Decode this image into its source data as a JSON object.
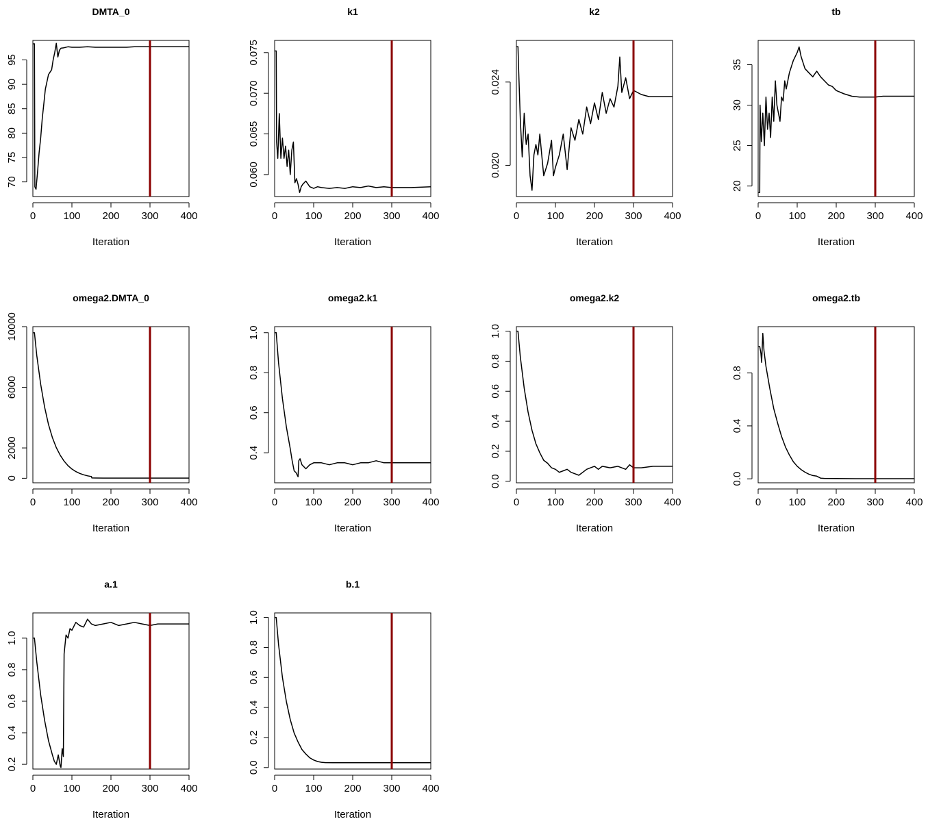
{
  "chart_data": [
    {
      "type": "line",
      "title": "DMTA_0",
      "xlabel": "Iteration",
      "xlim": [
        0,
        400
      ],
      "ylim": [
        67,
        99
      ],
      "xticks": [
        0,
        100,
        200,
        300,
        400
      ],
      "yticks": [
        70,
        75,
        80,
        85,
        90,
        95
      ],
      "vline": {
        "x": 300,
        "color": "#8b0000"
      },
      "series": [
        {
          "x": [
            1,
            4,
            5,
            8,
            12,
            16,
            20,
            24,
            28,
            32,
            36,
            40,
            44,
            48,
            52,
            56,
            60,
            64,
            68,
            72,
            80,
            90,
            100,
            120,
            140,
            160,
            180,
            200,
            220,
            240,
            260,
            280,
            300,
            320,
            350,
            400
          ],
          "y": [
            98.3,
            98.3,
            69,
            68.5,
            72,
            76,
            79,
            83,
            86,
            89,
            90.5,
            92,
            92.5,
            93,
            95,
            96.5,
            98.4,
            95.6,
            97,
            97.4,
            97.5,
            97.7,
            97.6,
            97.6,
            97.7,
            97.6,
            97.6,
            97.6,
            97.6,
            97.6,
            97.7,
            97.7,
            97.7,
            97.7,
            97.7,
            97.7
          ]
        }
      ]
    },
    {
      "type": "line",
      "title": "k1",
      "xlabel": "Iteration",
      "xlim": [
        0,
        400
      ],
      "ylim": [
        0.0573,
        0.0765
      ],
      "xticks": [
        0,
        100,
        200,
        300,
        400
      ],
      "yticks": [
        0.06,
        0.065,
        0.07,
        0.075
      ],
      "ytick_labels": [
        "0.060",
        "0.065",
        "0.070",
        "0.075"
      ],
      "vline": {
        "x": 300,
        "color": "#8b0000"
      },
      "series": [
        {
          "x": [
            1,
            4,
            5,
            8,
            12,
            16,
            20,
            24,
            28,
            32,
            36,
            40,
            44,
            48,
            52,
            56,
            60,
            64,
            68,
            72,
            80,
            90,
            100,
            110,
            120,
            140,
            160,
            180,
            200,
            220,
            240,
            260,
            280,
            300,
            320,
            350,
            400
          ],
          "y": [
            0.0752,
            0.0752,
            0.064,
            0.062,
            0.0675,
            0.062,
            0.0645,
            0.062,
            0.0635,
            0.061,
            0.063,
            0.06,
            0.063,
            0.064,
            0.059,
            0.0595,
            0.0588,
            0.0578,
            0.0585,
            0.0588,
            0.0592,
            0.0585,
            0.0583,
            0.0585,
            0.0584,
            0.0583,
            0.0584,
            0.0583,
            0.0585,
            0.0584,
            0.0586,
            0.0584,
            0.0585,
            0.0584,
            0.0584,
            0.0584,
            0.0585
          ]
        }
      ]
    },
    {
      "type": "line",
      "title": "k2",
      "xlabel": "Iteration",
      "xlim": [
        0,
        400
      ],
      "ylim": [
        0.0185,
        0.026
      ],
      "xticks": [
        0,
        100,
        200,
        300,
        400
      ],
      "yticks": [
        0.02,
        0.024
      ],
      "ytick_labels": [
        "0.020",
        "0.024"
      ],
      "vline": {
        "x": 300,
        "color": "#8b0000"
      },
      "series": [
        {
          "x": [
            1,
            4,
            6,
            10,
            15,
            20,
            25,
            30,
            35,
            40,
            45,
            50,
            55,
            60,
            65,
            70,
            80,
            90,
            95,
            100,
            110,
            120,
            130,
            140,
            150,
            160,
            170,
            180,
            190,
            200,
            210,
            220,
            230,
            240,
            250,
            260,
            265,
            270,
            280,
            290,
            300,
            310,
            320,
            340,
            360,
            400
          ],
          "y": [
            0.0257,
            0.0257,
            0.0245,
            0.0222,
            0.0204,
            0.0225,
            0.021,
            0.0215,
            0.0195,
            0.0188,
            0.0205,
            0.021,
            0.0205,
            0.0215,
            0.0205,
            0.0195,
            0.0201,
            0.0212,
            0.0195,
            0.0199,
            0.0205,
            0.0215,
            0.0198,
            0.0218,
            0.0212,
            0.0222,
            0.0215,
            0.0228,
            0.022,
            0.023,
            0.0222,
            0.0235,
            0.0225,
            0.0232,
            0.0228,
            0.0238,
            0.0252,
            0.0235,
            0.0242,
            0.0232,
            0.0236,
            0.0235,
            0.0234,
            0.0233,
            0.0233,
            0.0233
          ]
        }
      ]
    },
    {
      "type": "line",
      "title": "tb",
      "xlabel": "Iteration",
      "xlim": [
        0,
        400
      ],
      "ylim": [
        18.7,
        38
      ],
      "xticks": [
        0,
        100,
        200,
        300,
        400
      ],
      "yticks": [
        20,
        25,
        30,
        35
      ],
      "vline": {
        "x": 300,
        "color": "#8b0000"
      },
      "series": [
        {
          "x": [
            1,
            4,
            5,
            8,
            12,
            16,
            20,
            24,
            28,
            32,
            36,
            40,
            44,
            48,
            52,
            56,
            60,
            64,
            68,
            72,
            80,
            90,
            100,
            105,
            110,
            120,
            130,
            140,
            150,
            160,
            170,
            180,
            190,
            200,
            220,
            240,
            260,
            280,
            300,
            320,
            350,
            400
          ],
          "y": [
            19.2,
            19.2,
            30,
            25.5,
            29,
            25,
            31,
            27,
            29,
            26,
            31,
            28,
            33,
            30,
            29,
            28,
            31,
            30.5,
            33,
            32,
            34,
            35.5,
            36.5,
            37.2,
            36,
            34.5,
            34,
            33.5,
            34.2,
            33.5,
            33,
            32.5,
            32.3,
            31.8,
            31.4,
            31.1,
            31.0,
            31.0,
            31.0,
            31.1,
            31.1,
            31.1
          ]
        }
      ]
    },
    {
      "type": "line",
      "title": "omega2.DMTA_0",
      "xlabel": "Iteration",
      "xlim": [
        0,
        400
      ],
      "ylim": [
        -300,
        10000
      ],
      "xticks": [
        0,
        100,
        200,
        300,
        400
      ],
      "yticks": [
        0,
        2000,
        6000,
        10000
      ],
      "vline": {
        "x": 300,
        "color": "#8b0000"
      },
      "series": [
        {
          "x": [
            1,
            4,
            10,
            20,
            30,
            40,
            50,
            60,
            70,
            80,
            90,
            100,
            110,
            120,
            130,
            140,
            150,
            151,
            160,
            180,
            200,
            250,
            300,
            350,
            400
          ],
          "y": [
            9600,
            9600,
            8100,
            6200,
            4700,
            3550,
            2680,
            2020,
            1520,
            1130,
            830,
            610,
            440,
            320,
            230,
            160,
            110,
            20,
            15,
            12,
            10,
            10,
            10,
            10,
            10
          ]
        }
      ]
    },
    {
      "type": "line",
      "title": "omega2.k1",
      "xlabel": "Iteration",
      "xlim": [
        0,
        400
      ],
      "ylim": [
        0.25,
        1.03
      ],
      "xticks": [
        0,
        100,
        200,
        300,
        400
      ],
      "yticks": [
        0.4,
        0.6,
        0.8,
        1.0
      ],
      "ytick_labels": [
        "0.4",
        "0.6",
        "0.8",
        "1.0"
      ],
      "vline": {
        "x": 300,
        "color": "#8b0000"
      },
      "series": [
        {
          "x": [
            1,
            4,
            10,
            20,
            30,
            40,
            45,
            50,
            55,
            60,
            62,
            65,
            70,
            80,
            90,
            100,
            120,
            140,
            160,
            180,
            200,
            220,
            240,
            260,
            280,
            300,
            320,
            350,
            400
          ],
          "y": [
            1.0,
            1.0,
            0.85,
            0.67,
            0.53,
            0.42,
            0.36,
            0.31,
            0.3,
            0.28,
            0.36,
            0.37,
            0.34,
            0.32,
            0.34,
            0.35,
            0.35,
            0.34,
            0.35,
            0.35,
            0.34,
            0.35,
            0.35,
            0.36,
            0.35,
            0.35,
            0.35,
            0.35,
            0.35
          ]
        }
      ]
    },
    {
      "type": "line",
      "title": "omega2.k2",
      "xlabel": "Iteration",
      "xlim": [
        0,
        400
      ],
      "ylim": [
        -0.01,
        1.03
      ],
      "xticks": [
        0,
        100,
        200,
        300,
        400
      ],
      "yticks": [
        0.0,
        0.2,
        0.4,
        0.6,
        0.8,
        1.0
      ],
      "ytick_labels": [
        "0.0",
        "0.2",
        "0.4",
        "0.6",
        "0.8",
        "1.0"
      ],
      "vline": {
        "x": 300,
        "color": "#8b0000"
      },
      "series": [
        {
          "x": [
            1,
            4,
            10,
            20,
            30,
            40,
            50,
            60,
            70,
            80,
            90,
            100,
            110,
            120,
            130,
            140,
            150,
            160,
            170,
            180,
            190,
            200,
            210,
            220,
            240,
            260,
            280,
            290,
            300,
            320,
            350,
            400
          ],
          "y": [
            1.0,
            1.0,
            0.83,
            0.62,
            0.46,
            0.34,
            0.25,
            0.19,
            0.14,
            0.12,
            0.09,
            0.08,
            0.06,
            0.07,
            0.08,
            0.06,
            0.05,
            0.04,
            0.06,
            0.08,
            0.09,
            0.1,
            0.08,
            0.1,
            0.09,
            0.1,
            0.08,
            0.11,
            0.09,
            0.09,
            0.1,
            0.1
          ]
        }
      ]
    },
    {
      "type": "line",
      "title": "omega2.tb",
      "xlabel": "Iteration",
      "xlim": [
        0,
        400
      ],
      "ylim": [
        -0.03,
        1.15
      ],
      "xticks": [
        0,
        100,
        200,
        300,
        400
      ],
      "yticks": [
        0.0,
        0.4,
        0.8
      ],
      "ytick_labels": [
        "0.0",
        "0.4",
        "0.8"
      ],
      "vline": {
        "x": 300,
        "color": "#8b0000"
      },
      "series": [
        {
          "x": [
            1,
            4,
            7,
            9,
            12,
            15,
            20,
            30,
            40,
            50,
            60,
            70,
            80,
            90,
            100,
            110,
            120,
            130,
            140,
            150,
            160,
            170,
            200,
            250,
            300,
            350,
            400
          ],
          "y": [
            1.0,
            1.0,
            0.95,
            0.88,
            1.1,
            0.97,
            0.85,
            0.68,
            0.53,
            0.42,
            0.32,
            0.24,
            0.18,
            0.13,
            0.095,
            0.07,
            0.05,
            0.035,
            0.025,
            0.02,
            0.005,
            0.003,
            0.002,
            0.001,
            0.001,
            0.001,
            0.001
          ]
        }
      ]
    },
    {
      "type": "line",
      "title": "a.1",
      "xlabel": "Iteration",
      "xlim": [
        0,
        400
      ],
      "ylim": [
        0.17,
        1.16
      ],
      "xticks": [
        0,
        100,
        200,
        300,
        400
      ],
      "yticks": [
        0.2,
        0.4,
        0.6,
        0.8,
        1.0
      ],
      "ytick_labels": [
        "0.2",
        "0.4",
        "0.6",
        "0.8",
        "1.0"
      ],
      "vline": {
        "x": 300,
        "color": "#8b0000"
      },
      "series": [
        {
          "x": [
            1,
            4,
            10,
            20,
            30,
            40,
            50,
            55,
            60,
            65,
            70,
            72,
            75,
            78,
            80,
            85,
            90,
            95,
            100,
            110,
            120,
            130,
            140,
            150,
            160,
            180,
            200,
            220,
            240,
            260,
            280,
            300,
            320,
            350,
            400
          ],
          "y": [
            1.0,
            1.0,
            0.85,
            0.64,
            0.48,
            0.35,
            0.26,
            0.22,
            0.2,
            0.26,
            0.19,
            0.18,
            0.3,
            0.25,
            0.9,
            1.02,
            1.0,
            1.06,
            1.05,
            1.1,
            1.08,
            1.07,
            1.12,
            1.09,
            1.08,
            1.09,
            1.1,
            1.08,
            1.09,
            1.1,
            1.09,
            1.08,
            1.09,
            1.09,
            1.09
          ]
        }
      ]
    },
    {
      "type": "line",
      "title": "b.1",
      "xlabel": "Iteration",
      "xlim": [
        0,
        400
      ],
      "ylim": [
        -0.01,
        1.03
      ],
      "xticks": [
        0,
        100,
        200,
        300,
        400
      ],
      "yticks": [
        0.0,
        0.2,
        0.4,
        0.6,
        0.8,
        1.0
      ],
      "ytick_labels": [
        "0.0",
        "0.2",
        "0.4",
        "0.6",
        "0.8",
        "1.0"
      ],
      "vline": {
        "x": 300,
        "color": "#8b0000"
      },
      "series": [
        {
          "x": [
            1,
            4,
            10,
            20,
            30,
            40,
            50,
            60,
            70,
            80,
            90,
            100,
            110,
            120,
            130,
            150,
            200,
            250,
            300,
            350,
            400
          ],
          "y": [
            1.0,
            1.0,
            0.82,
            0.6,
            0.44,
            0.32,
            0.23,
            0.17,
            0.12,
            0.09,
            0.065,
            0.05,
            0.04,
            0.035,
            0.033,
            0.032,
            0.032,
            0.032,
            0.032,
            0.032,
            0.032
          ]
        }
      ]
    }
  ]
}
